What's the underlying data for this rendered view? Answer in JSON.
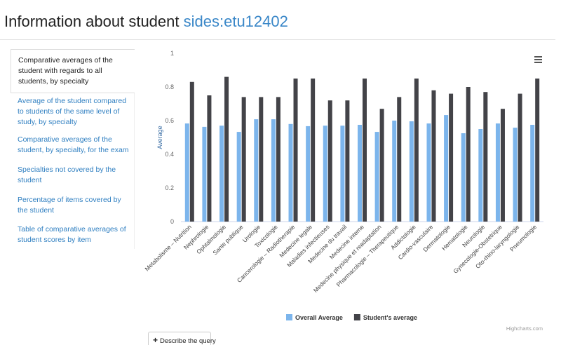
{
  "header": {
    "title": "Information about student",
    "student_id": "sides:etu12402"
  },
  "sidebar": {
    "items": [
      "Comparative averages of the student with regards to all students, by specialty",
      "Average of the student compared to students of the same level of study, by specialty",
      "Comparative averages of the student, by specialty, for the exam",
      "Specialties not covered by the student",
      "Percentage of items covered by the student",
      "Table of comparative averages of student scores by item"
    ]
  },
  "button": {
    "label": "Describe the query"
  },
  "chart_data": {
    "type": "bar",
    "y_label": "Average",
    "credits": "Highcharts.com",
    "legend": "bottom",
    "grid": false,
    "categories": [
      "Metabolisme – Nutrition",
      "Nephrologie",
      "Ophtalmologie",
      "Sante publique",
      "Urologie",
      "Toxicologie",
      "Cancerologie – Radiotherapie",
      "Medecine legale",
      "Maladies infectieuses",
      "Medecine du travail",
      "Medecine interne",
      "Medecine physique et readaptation",
      "Pharmacologie – Therapeutique",
      "Addictologie",
      "Cardio-vasculaire",
      "Dermatologie",
      "Hematologie",
      "Neurologie",
      "Gynecologie-Obstetrique",
      "Oto-rhino-laryngologie",
      "Pneumologie"
    ],
    "series": [
      {
        "name": "Overall Average",
        "color": "#7cb5ec",
        "values": [
          0.583,
          0.563,
          0.57,
          0.533,
          0.608,
          0.608,
          0.58,
          0.567,
          0.57,
          0.57,
          0.575,
          0.533,
          0.6,
          0.596,
          0.583,
          0.633,
          0.525,
          0.55,
          0.583,
          0.558,
          0.575
        ]
      },
      {
        "name": "Student's average",
        "color": "#434348",
        "values": [
          0.83,
          0.75,
          0.86,
          0.74,
          0.74,
          0.74,
          0.85,
          0.85,
          0.72,
          0.72,
          0.85,
          0.67,
          0.74,
          0.85,
          0.78,
          0.76,
          0.8,
          0.77,
          0.67,
          0.76,
          0.85
        ]
      }
    ],
    "ylim": [
      0,
      1
    ],
    "yticks": [
      0,
      0.2,
      0.4,
      0.6,
      0.8,
      1
    ]
  }
}
